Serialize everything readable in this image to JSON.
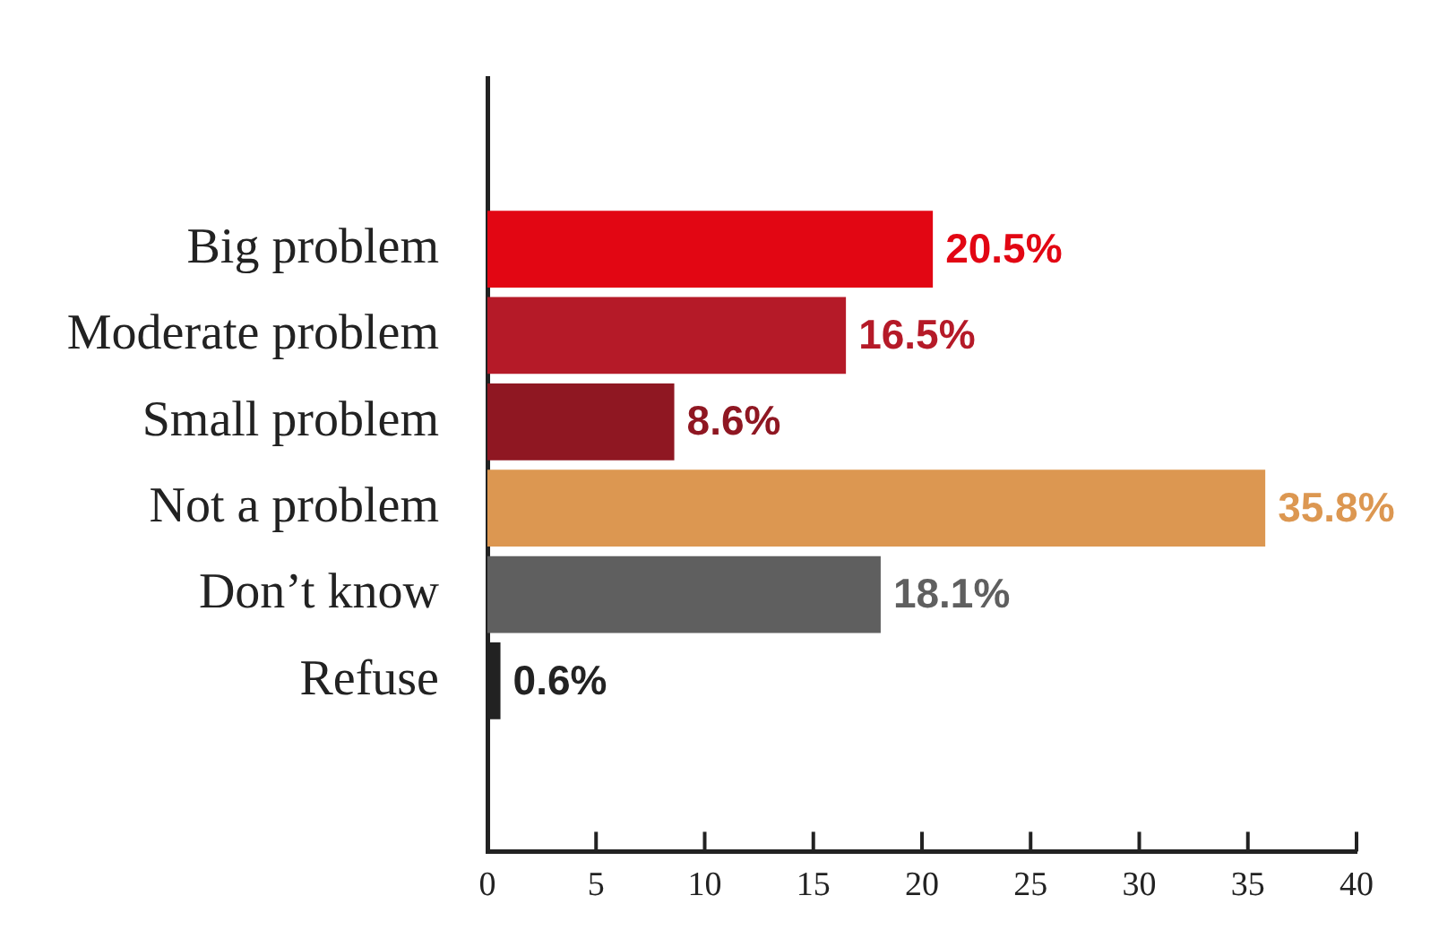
{
  "chart_data": {
    "type": "bar",
    "orientation": "horizontal",
    "categories": [
      "Big problem",
      "Moderate problem",
      "Small problem",
      "Not a problem",
      "Don’t know",
      "Refuse"
    ],
    "values": [
      20.5,
      16.5,
      8.6,
      35.8,
      18.1,
      0.6
    ],
    "colors": [
      "#e20613",
      "#b51a28",
      "#8f1722",
      "#dc9751",
      "#5f5f5f",
      "#222222"
    ],
    "value_labels": [
      "20.5%",
      "16.5%",
      "8.6%",
      "35.8%",
      "18.1%",
      "0.6%"
    ],
    "xlim": [
      0,
      40
    ],
    "xticks": [
      0,
      5,
      10,
      15,
      20,
      25,
      30,
      35,
      40
    ]
  }
}
